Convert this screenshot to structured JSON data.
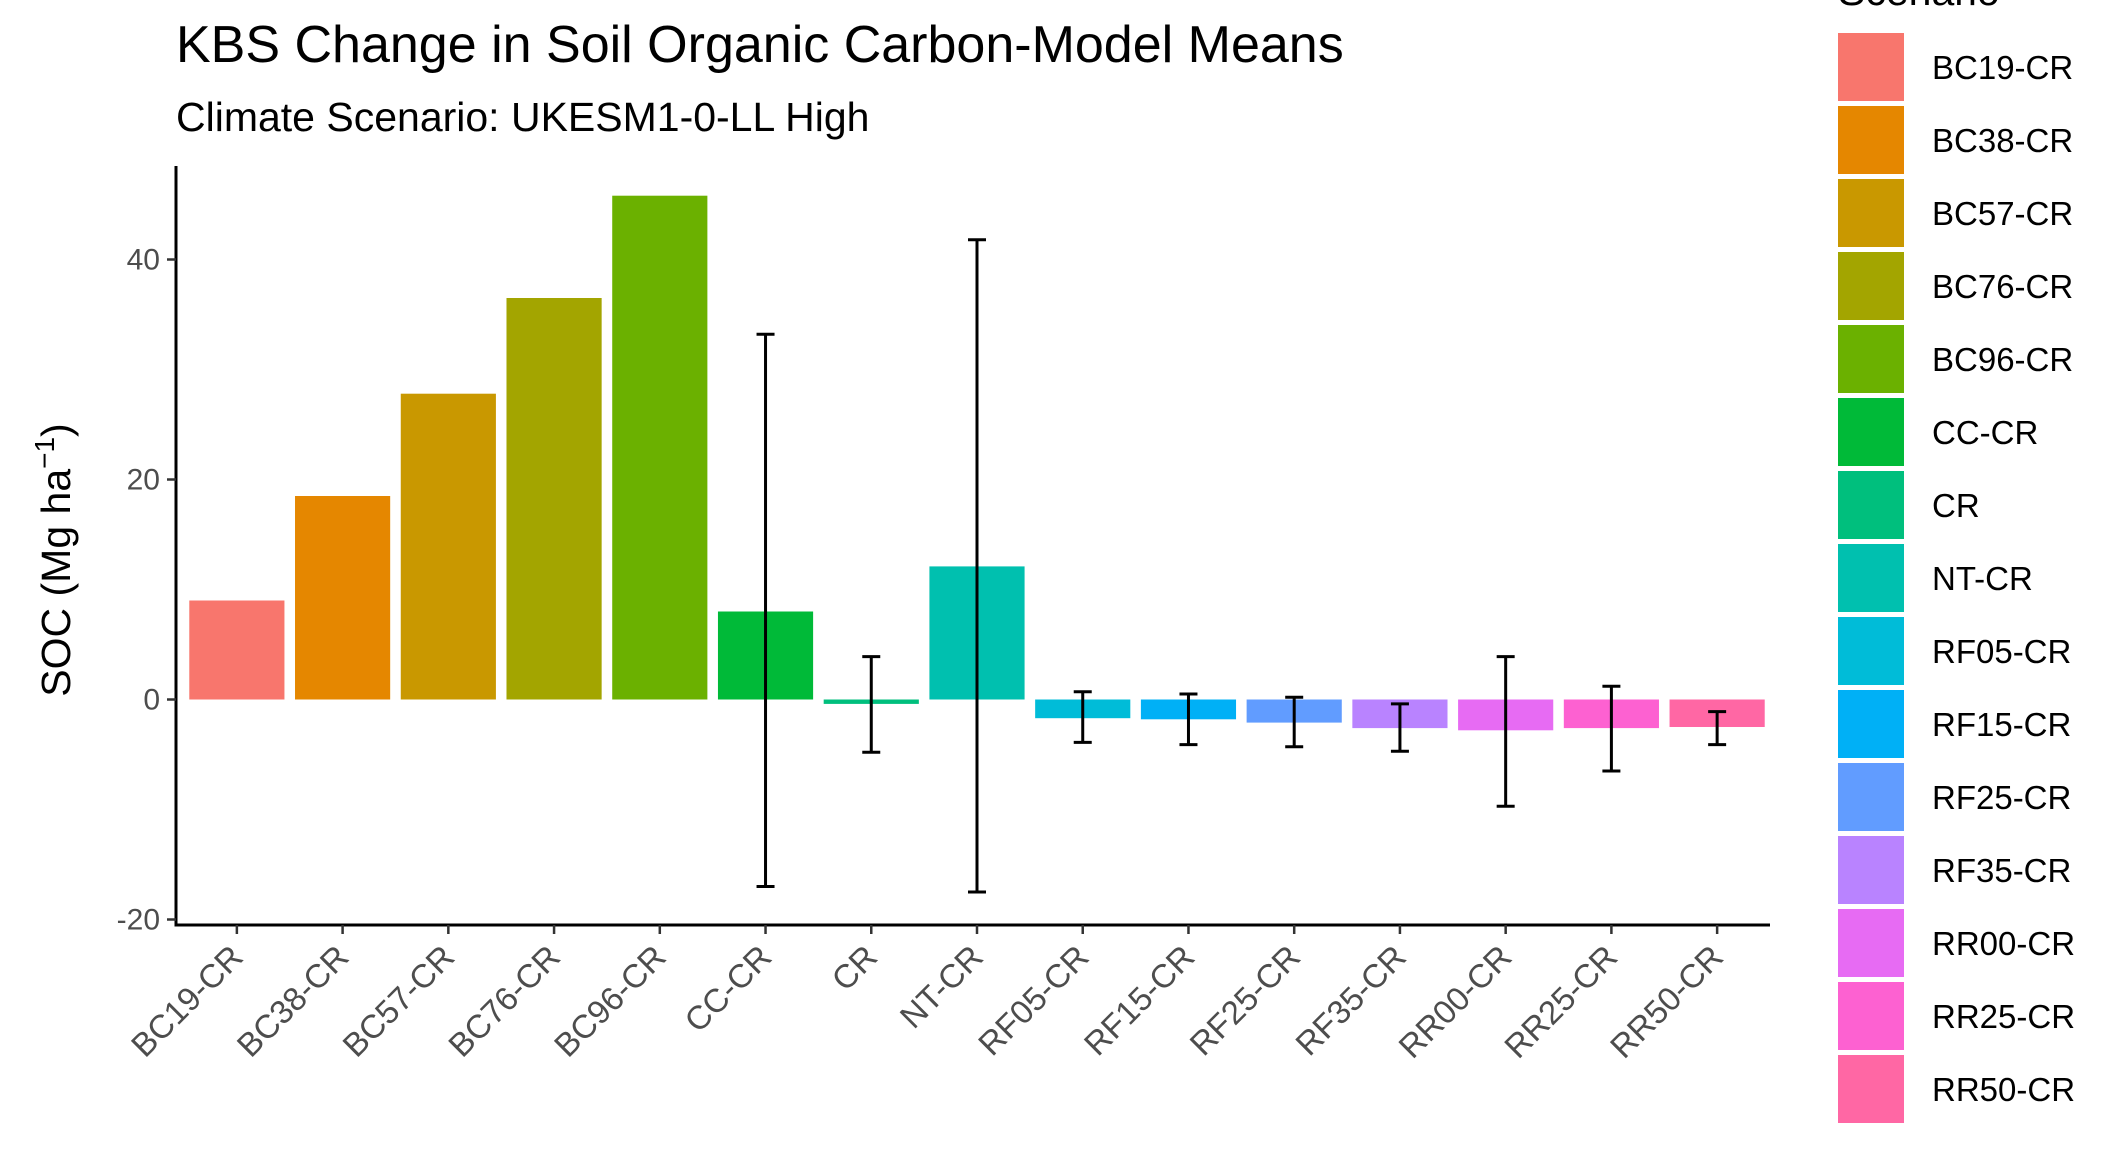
{
  "chart_data": {
    "type": "bar",
    "title": "KBS Change in Soil Organic Carbon-Model Means",
    "subtitle": "Climate Scenario: UKESM1-0-LL High",
    "xlabel": "",
    "ylabel": "SOC (Mg ha",
    "ylabel_sup": "−1",
    "ylabel_close": ")",
    "ylim": [
      -20.5,
      48.5
    ],
    "yticks": [
      -20,
      0,
      20,
      40
    ],
    "grid": false,
    "legend": {
      "title": "Scenario",
      "placement": "right"
    },
    "categories": [
      "BC19-CR",
      "BC38-CR",
      "BC57-CR",
      "BC76-CR",
      "BC96-CR",
      "CC-CR",
      "CR",
      "NT-CR",
      "RF05-CR",
      "RF15-CR",
      "RF25-CR",
      "RF35-CR",
      "RR00-CR",
      "RR25-CR",
      "RR50-CR"
    ],
    "values": [
      9.0,
      18.5,
      27.8,
      36.5,
      45.8,
      8.0,
      -0.4,
      12.1,
      -1.7,
      -1.8,
      -2.1,
      -2.6,
      -2.8,
      -2.6,
      -2.5
    ],
    "error_low": [
      null,
      null,
      null,
      null,
      null,
      -17.0,
      -4.8,
      -17.5,
      -3.9,
      -4.1,
      -4.3,
      -4.7,
      -9.7,
      -6.5,
      -4.1
    ],
    "error_high": [
      null,
      null,
      null,
      null,
      null,
      33.2,
      3.9,
      41.8,
      0.7,
      0.5,
      0.2,
      -0.4,
      3.9,
      1.2,
      -1.1
    ],
    "colors": [
      "#F8766D",
      "#E58700",
      "#C99800",
      "#A3A500",
      "#6BB100",
      "#00BA38",
      "#00BF7D",
      "#00C0AF",
      "#00BCD8",
      "#00B0F6",
      "#619CFF",
      "#B983FF",
      "#E76BF3",
      "#FD61D1",
      "#FF67A4"
    ]
  }
}
